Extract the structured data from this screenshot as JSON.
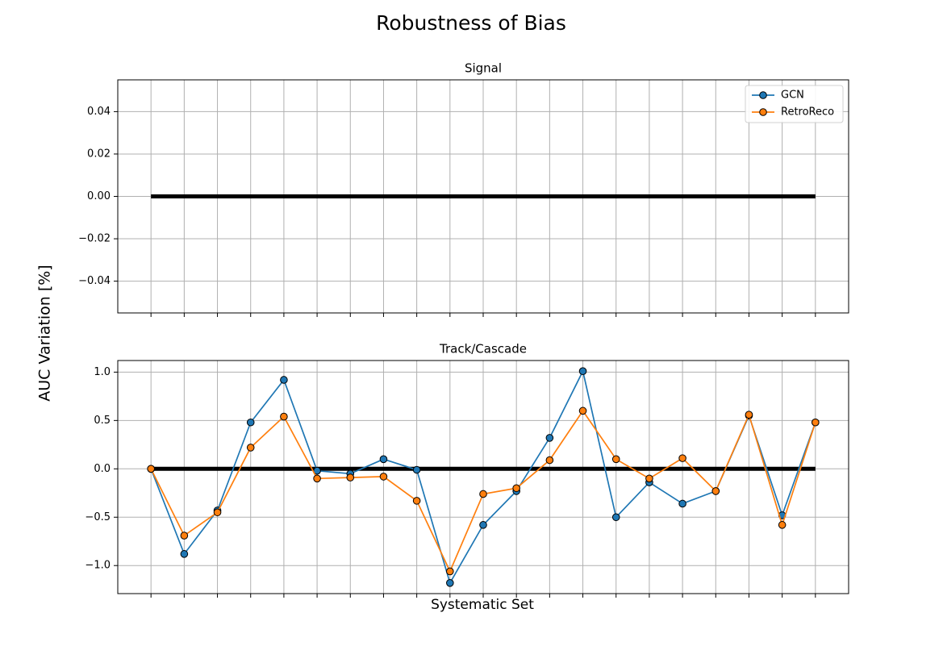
{
  "title": "Robustness of Bias",
  "ylabel": "AUC Variation [%]",
  "xlabel": "Systematic Set",
  "chart_data": [
    {
      "type": "line",
      "title": "Signal",
      "categories": [
        null,
        null,
        null,
        null,
        null,
        null,
        null,
        null,
        null,
        null,
        null,
        null,
        null,
        null,
        null,
        null,
        null,
        null,
        null,
        null,
        null
      ],
      "series": [
        {
          "name": "GCN",
          "color": "#1f77b4",
          "values": [
            null,
            null,
            null,
            null,
            null,
            null,
            null,
            null,
            null,
            null,
            null,
            null,
            null,
            null,
            null,
            null,
            null,
            null,
            null,
            null,
            null
          ]
        },
        {
          "name": "RetroReco",
          "color": "#ff7f0e",
          "values": [
            null,
            null,
            null,
            null,
            null,
            null,
            null,
            null,
            null,
            null,
            null,
            null,
            null,
            null,
            null,
            null,
            null,
            null,
            null,
            null,
            null
          ]
        }
      ],
      "hline": 0,
      "hline_color": "#000000",
      "ylim": [
        -0.055,
        0.055
      ],
      "yticks": [
        {
          "value": -0.04,
          "label": "−0.04"
        },
        {
          "value": -0.02,
          "label": "−0.02"
        },
        {
          "value": 0,
          "label": "0.00"
        },
        {
          "value": 0.02,
          "label": "0.02"
        },
        {
          "value": 0.04,
          "label": "0.04"
        }
      ],
      "grid": true,
      "legend": "upper right"
    },
    {
      "type": "line",
      "title": "Track/Cascade",
      "categories": [
        null,
        null,
        null,
        null,
        null,
        null,
        null,
        null,
        null,
        null,
        null,
        null,
        null,
        null,
        null,
        null,
        null,
        null,
        null,
        null,
        null
      ],
      "series": [
        {
          "name": "GCN",
          "color": "#1f77b4",
          "values": [
            0,
            -0.88,
            -0.43,
            0.48,
            0.92,
            -0.02,
            -0.05,
            0.1,
            -0.01,
            -1.18,
            -0.58,
            -0.23,
            0.32,
            1.01,
            -0.5,
            -0.14,
            -0.36,
            -0.23,
            0.55,
            -0.48,
            0.48
          ]
        },
        {
          "name": "RetroReco",
          "color": "#ff7f0e",
          "values": [
            0,
            -0.69,
            -0.45,
            0.22,
            0.54,
            -0.1,
            -0.09,
            -0.08,
            -0.33,
            -1.06,
            -0.26,
            -0.2,
            0.09,
            0.6,
            0.1,
            -0.1,
            0.11,
            -0.23,
            0.56,
            -0.58,
            0.48
          ]
        }
      ],
      "hline": 0,
      "hline_color": "#000000",
      "ylim": [
        -1.29,
        1.12
      ],
      "yticks": [
        {
          "value": -1,
          "label": "−1.0"
        },
        {
          "value": -0.5,
          "label": "−0.5"
        },
        {
          "value": 0,
          "label": "0.0"
        },
        {
          "value": 0.5,
          "label": "0.5"
        },
        {
          "value": 1,
          "label": "1.0"
        }
      ],
      "grid": true
    }
  ]
}
